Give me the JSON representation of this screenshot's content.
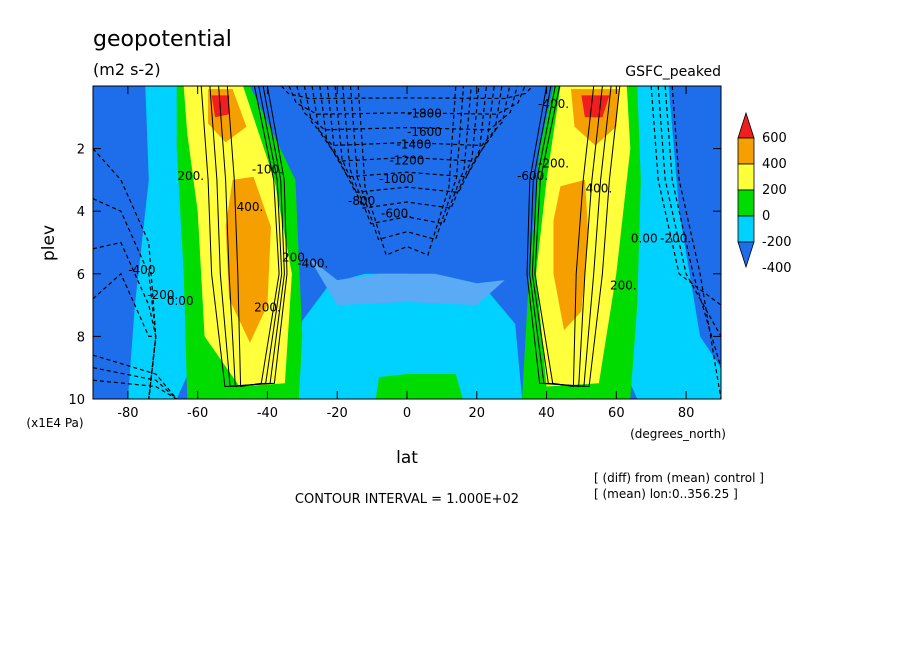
{
  "chart_data": {
    "type": "heatmap",
    "title": "geopotential",
    "units": "(m2 s-2)",
    "subtitle_right": "GSFC_peaked",
    "xlabel": "lat",
    "xunits": "(degrees_north)",
    "ylabel": "plev",
    "yunits": "(x1E4 Pa)",
    "xlim": [
      -90,
      90
    ],
    "ylim": [
      10,
      0
    ],
    "xticks": [
      -80,
      -60,
      -40,
      -20,
      0,
      20,
      40,
      60,
      80
    ],
    "yticks": [
      2,
      4,
      6,
      8,
      10
    ],
    "contour_interval_text": "CONTOUR INTERVAL = 1.000E+02",
    "notes": [
      "[ (diff) from (mean) control ]",
      "[ (mean) lon:0..356.25 ]"
    ],
    "colorbar": {
      "levels": [
        -400,
        -200,
        0,
        200,
        400,
        600
      ],
      "colors": [
        "#1e6eeb",
        "#00d2ff",
        "#00dc00",
        "#ffff3c",
        "#f5a000",
        "#f01e1e"
      ]
    },
    "contour_labels": [
      {
        "text": "-1800",
        "lat": 5,
        "plev": 1.0
      },
      {
        "text": "-1600",
        "lat": 5,
        "plev": 1.6
      },
      {
        "text": "-1400",
        "lat": 2,
        "plev": 2.0
      },
      {
        "text": "-1200",
        "lat": 0,
        "plev": 2.5
      },
      {
        "text": "-1000",
        "lat": -3,
        "plev": 3.1
      },
      {
        "text": "-800",
        "lat": -13,
        "plev": 3.8
      },
      {
        "text": "-600.",
        "lat": -3,
        "plev": 4.2
      },
      {
        "text": "-400.",
        "lat": -27,
        "plev": 5.8
      },
      {
        "text": "200.",
        "lat": -32,
        "plev": 5.6
      },
      {
        "text": "-100.",
        "lat": -40,
        "plev": 2.8
      },
      {
        "text": "400.",
        "lat": -45,
        "plev": 4.0
      },
      {
        "text": "200.",
        "lat": -62,
        "plev": 3.0
      },
      {
        "text": "200.",
        "lat": -40,
        "plev": 7.2
      },
      {
        "text": "0.00",
        "lat": -65,
        "plev": 7.0
      },
      {
        "text": "-200.",
        "lat": -70,
        "plev": 6.8
      },
      {
        "text": "-400",
        "lat": -76,
        "plev": 6.0
      },
      {
        "text": "-600.",
        "lat": 36,
        "plev": 3.0
      },
      {
        "text": "-200.",
        "lat": 42,
        "plev": 2.6
      },
      {
        "text": "-400.",
        "lat": 42,
        "plev": 0.7
      },
      {
        "text": "400.",
        "lat": 55,
        "plev": 3.4
      },
      {
        "text": "200.",
        "lat": 62,
        "plev": 6.5
      },
      {
        "text": "0.00",
        "lat": 68,
        "plev": 5.0
      },
      {
        "text": "-200.",
        "lat": 77,
        "plev": 5.0
      }
    ]
  }
}
